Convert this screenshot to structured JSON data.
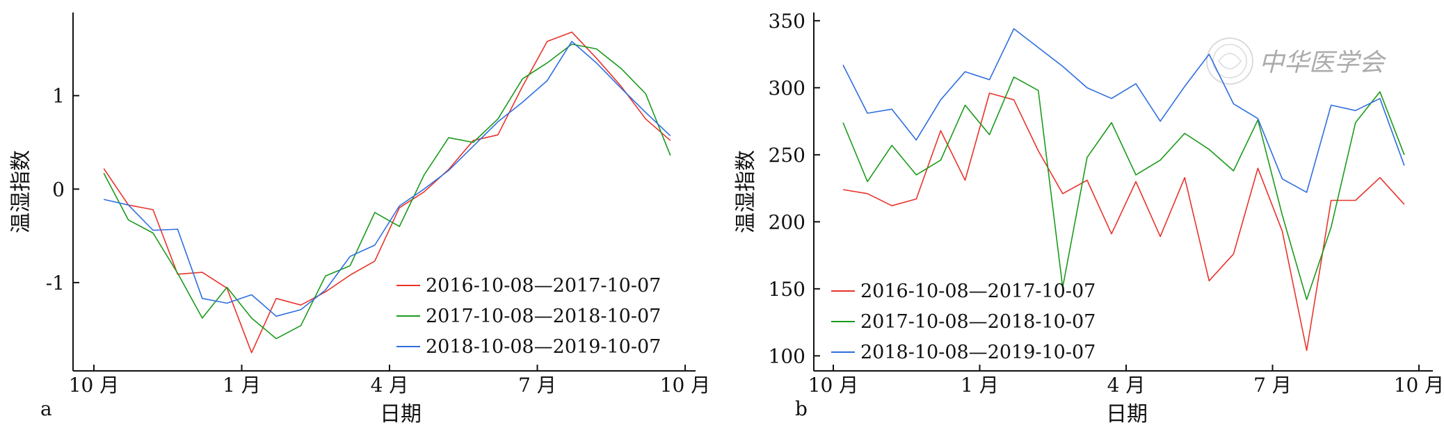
{
  "chart_data": [
    {
      "panel": "a",
      "type": "line",
      "title": "",
      "xlabel": "日期",
      "ylabel": "温湿指数",
      "x_ticks": [
        "10 月",
        "1 月",
        "4 月",
        "7 月",
        "10 月"
      ],
      "xlim": [
        0,
        12
      ],
      "ylim": [
        -1.9,
        1.8
      ],
      "y_ticks": [
        "-1",
        "0",
        "1"
      ],
      "y_tick_values": [
        -1,
        0,
        1
      ],
      "legend_position": "bottom-right",
      "series": [
        {
          "name": "2016-10-08—2017-10-07",
          "color": "#e8332b",
          "x": [
            0.2,
            0.7,
            1.2,
            1.7,
            2.2,
            2.7,
            3.2,
            3.7,
            4.2,
            4.7,
            5.2,
            5.7,
            6.2,
            6.7,
            7.2,
            7.7,
            8.2,
            8.7,
            9.2,
            9.7,
            10.2,
            10.7,
            11.2,
            11.7
          ],
          "values": [
            0.22,
            -0.17,
            -0.22,
            -0.91,
            -0.89,
            -1.06,
            -1.75,
            -1.17,
            -1.24,
            -1.1,
            -0.92,
            -0.77,
            -0.2,
            -0.03,
            0.21,
            0.52,
            0.58,
            1.1,
            1.58,
            1.68,
            1.4,
            1.1,
            0.75,
            0.52
          ]
        },
        {
          "name": "2017-10-08—2018-10-07",
          "color": "#1a9a1a",
          "x": [
            0.2,
            0.7,
            1.2,
            1.7,
            2.2,
            2.7,
            3.2,
            3.7,
            4.2,
            4.7,
            5.2,
            5.7,
            6.2,
            6.7,
            7.2,
            7.7,
            8.2,
            8.7,
            9.2,
            9.7,
            10.2,
            10.7,
            11.2,
            11.7
          ],
          "values": [
            0.17,
            -0.33,
            -0.47,
            -0.9,
            -1.38,
            -1.05,
            -1.38,
            -1.6,
            -1.46,
            -0.93,
            -0.82,
            -0.25,
            -0.4,
            0.15,
            0.55,
            0.5,
            0.75,
            1.18,
            1.35,
            1.55,
            1.5,
            1.29,
            1.02,
            0.36
          ]
        },
        {
          "name": "2018-10-08—2019-10-07",
          "color": "#2e6ee0",
          "x": [
            0.2,
            0.7,
            1.2,
            1.7,
            2.2,
            2.7,
            3.2,
            3.7,
            4.2,
            4.7,
            5.2,
            5.7,
            6.2,
            6.7,
            7.2,
            7.7,
            8.2,
            8.7,
            9.2,
            9.7,
            10.2,
            10.7,
            11.2,
            11.7
          ],
          "values": [
            -0.11,
            -0.17,
            -0.44,
            -0.43,
            -1.17,
            -1.22,
            -1.13,
            -1.36,
            -1.29,
            -1.08,
            -0.72,
            -0.6,
            -0.18,
            0.0,
            0.2,
            0.46,
            0.72,
            0.93,
            1.16,
            1.58,
            1.35,
            1.08,
            0.82,
            0.57
          ]
        }
      ]
    },
    {
      "panel": "b",
      "type": "line",
      "title": "",
      "xlabel": "日期",
      "ylabel": "温湿指数",
      "x_ticks": [
        "10 月",
        "1 月",
        "4 月",
        "7 月",
        "10 月"
      ],
      "xlim": [
        0,
        12
      ],
      "ylim": [
        95,
        352
      ],
      "y_ticks": [
        "100",
        "150",
        "200",
        "250",
        "300",
        "350"
      ],
      "y_tick_values": [
        100,
        150,
        200,
        250,
        300,
        350
      ],
      "legend_position": "bottom-left",
      "series": [
        {
          "name": "2016-10-08—2017-10-07",
          "color": "#e8332b",
          "x": [
            0.2,
            0.7,
            1.2,
            1.7,
            2.2,
            2.7,
            3.2,
            3.7,
            4.2,
            4.7,
            5.2,
            5.7,
            6.2,
            6.7,
            7.2,
            7.7,
            8.2,
            8.7,
            9.2,
            9.7,
            10.2,
            10.7,
            11.2,
            11.7
          ],
          "values": [
            224,
            221,
            212,
            217,
            268,
            231,
            296,
            291,
            253,
            221,
            231,
            191,
            230,
            189,
            233,
            156,
            176,
            240,
            193,
            104,
            216,
            216,
            233,
            213
          ]
        },
        {
          "name": "2017-10-08—2018-10-07",
          "color": "#1a9a1a",
          "x": [
            0.2,
            0.7,
            1.2,
            1.7,
            2.2,
            2.7,
            3.2,
            3.7,
            4.2,
            4.7,
            5.2,
            5.7,
            6.2,
            6.7,
            7.2,
            7.7,
            8.2,
            8.7,
            9.2,
            9.7,
            10.2,
            10.7,
            11.2,
            11.7
          ],
          "values": [
            274,
            230,
            257,
            235,
            246,
            287,
            265,
            308,
            298,
            151,
            248,
            274,
            235,
            246,
            266,
            254,
            238,
            276,
            205,
            142,
            196,
            274,
            297,
            250
          ]
        },
        {
          "name": "2018-10-08—2019-10-07",
          "color": "#2e6ee0",
          "x": [
            0.2,
            0.7,
            1.2,
            1.7,
            2.2,
            2.7,
            3.2,
            3.7,
            4.2,
            4.7,
            5.2,
            5.7,
            6.2,
            6.7,
            7.2,
            7.7,
            8.2,
            8.7,
            9.2,
            9.7,
            10.2,
            10.7,
            11.2,
            11.7
          ],
          "values": [
            317,
            281,
            284,
            261,
            291,
            312,
            306,
            344,
            330,
            316,
            300,
            292,
            303,
            275,
            301,
            325,
            288,
            277,
            232,
            222,
            287,
            283,
            292,
            242
          ]
        }
      ]
    }
  ],
  "watermark_text": "中华医学会"
}
